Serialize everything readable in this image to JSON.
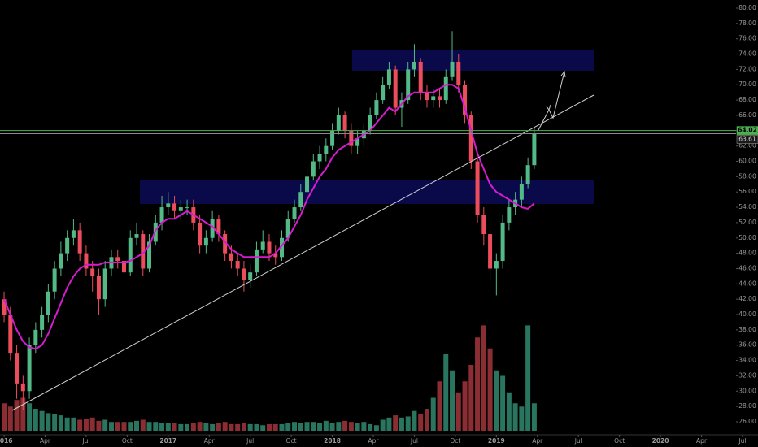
{
  "chart_data": {
    "type": "candlestick",
    "x": [
      0,
      2,
      4,
      6,
      8,
      10,
      12,
      14,
      16,
      18,
      20,
      22,
      24,
      26,
      28,
      30,
      32,
      34,
      36,
      38,
      40,
      42,
      44,
      46,
      48,
      50,
      52,
      54,
      56,
      58,
      60,
      62,
      64,
      66,
      68,
      70,
      72,
      74,
      76,
      78,
      80,
      82,
      84,
      86,
      88,
      90,
      92,
      94,
      96,
      98,
      100,
      102,
      104,
      106,
      108,
      110,
      112,
      114,
      116,
      118,
      120,
      122,
      124,
      126,
      128,
      130,
      132,
      134,
      136,
      138,
      140,
      142,
      144,
      146,
      148,
      150,
      152,
      154,
      156,
      158,
      160,
      162,
      164,
      166,
      168
    ],
    "open": [
      42,
      40,
      35,
      31,
      30,
      36,
      38,
      40,
      43,
      46,
      48,
      50,
      51,
      48,
      46,
      45,
      42,
      46,
      47.5,
      47,
      45.5,
      50,
      50.5,
      46,
      49.5,
      52,
      54,
      54.5,
      53.5,
      54,
      54,
      52,
      49,
      50,
      52.5,
      50.5,
      48,
      47,
      46,
      44.5,
      45.5,
      48.5,
      49.5,
      48,
      47.5,
      50,
      52.5,
      54,
      56,
      58,
      60,
      61,
      62,
      64,
      66,
      64,
      62,
      63,
      64,
      66,
      68,
      70,
      72,
      67,
      68,
      72,
      73,
      69,
      68,
      68.5,
      68,
      71,
      73,
      70,
      66,
      60,
      53,
      50.5,
      46,
      47,
      52,
      54,
      55,
      57,
      59.5
    ],
    "high": [
      43,
      41,
      36,
      32,
      37,
      39,
      41,
      44,
      47,
      49.5,
      51,
      52.5,
      52,
      49,
      47,
      46,
      47,
      48.5,
      48.5,
      48,
      51,
      52,
      51,
      50.5,
      53,
      55.5,
      56,
      55.5,
      55,
      55,
      55,
      53,
      51,
      53.5,
      53,
      51,
      49,
      48,
      47,
      46.5,
      49.5,
      51,
      50.5,
      49,
      51,
      53.5,
      55,
      57,
      59,
      61,
      62,
      63,
      65,
      67,
      66.5,
      65,
      64,
      65,
      67,
      69,
      71,
      73,
      72.5,
      69,
      73,
      75.3,
      73.5,
      70,
      69.5,
      69.5,
      72,
      77,
      74,
      70.5,
      66.5,
      60.5,
      54,
      51,
      48,
      53,
      55,
      56,
      58,
      60.5,
      64.5
    ],
    "low": [
      39,
      34,
      29,
      27.5,
      29,
      35,
      37,
      39,
      42,
      45,
      47,
      49,
      47,
      45,
      43,
      40,
      41,
      45,
      46,
      44.5,
      45,
      49,
      45,
      45.5,
      49,
      51,
      53,
      52.5,
      52.5,
      53,
      51,
      48,
      48,
      49.5,
      49.5,
      47,
      46,
      45,
      43,
      43.5,
      45,
      48,
      47,
      46.5,
      47,
      49.5,
      52,
      53.5,
      55.5,
      57.5,
      59,
      60,
      61.5,
      63.5,
      63,
      61,
      61,
      62,
      63.5,
      65.5,
      67.5,
      69.5,
      66,
      64.5,
      67.5,
      71,
      68,
      67,
      67,
      67,
      67.5,
      70.5,
      69,
      65,
      59,
      52,
      49,
      44.5,
      42.5,
      46,
      51,
      53,
      54,
      56.5,
      59
    ],
    "close": [
      40,
      35,
      31,
      30,
      36,
      38,
      40,
      43,
      46,
      48,
      50,
      51,
      48,
      46,
      45,
      42,
      46,
      47.5,
      47,
      45.5,
      50,
      50.5,
      46,
      49.5,
      52,
      54,
      54.5,
      53.5,
      54,
      54,
      52,
      49,
      50,
      52.5,
      50.5,
      48,
      47,
      46,
      44.5,
      45.5,
      48.5,
      49.5,
      48,
      47.5,
      50,
      52.5,
      54,
      56,
      58,
      60,
      61,
      62,
      64,
      66,
      64,
      62,
      63,
      64,
      66,
      68,
      70,
      72,
      67,
      68,
      72,
      73,
      69,
      68,
      68.5,
      68,
      71,
      73,
      70,
      66,
      60,
      53,
      50.5,
      46,
      47,
      52,
      54,
      55,
      57,
      59.5,
      63.61
    ],
    "volume": [
      25,
      22,
      28,
      30,
      25,
      20,
      18,
      16,
      15,
      14,
      12,
      12,
      10,
      11,
      12,
      9,
      10,
      8,
      8,
      8,
      8,
      9,
      10,
      8,
      8,
      7,
      7,
      7,
      6,
      6,
      7,
      8,
      7,
      6,
      7,
      8,
      6,
      6,
      7,
      6,
      6,
      5,
      6,
      6,
      6,
      7,
      8,
      7,
      8,
      8,
      7,
      9,
      7,
      8,
      9,
      8,
      7,
      8,
      6,
      5,
      10,
      12,
      14,
      12,
      13,
      18,
      15,
      20,
      30,
      45,
      70,
      55,
      35,
      45,
      60,
      85,
      96,
      75,
      55,
      50,
      35,
      25,
      22,
      96,
      25
    ],
    "moving_average": {
      "color": "#d81bd0",
      "values": [
        42,
        40,
        38,
        36.5,
        35.7,
        35.5,
        36,
        37.5,
        39.5,
        41.5,
        43.5,
        45,
        46,
        46.5,
        46.5,
        46.5,
        46.8,
        46.8,
        46.8,
        46.8,
        47,
        47.5,
        48,
        49,
        51,
        52,
        52.5,
        52.5,
        53,
        53.5,
        53,
        52.5,
        52,
        51.5,
        50.5,
        49.5,
        48.5,
        48,
        47.5,
        47.5,
        47.5,
        47.5,
        47.5,
        48,
        49,
        50,
        51.5,
        53,
        55,
        56.5,
        58,
        59,
        60.5,
        61.5,
        62,
        62.5,
        63,
        63.5,
        64,
        65,
        66,
        67,
        66.5,
        67.5,
        68.5,
        69,
        69,
        69,
        69,
        69.5,
        70,
        70,
        69.5,
        67,
        64,
        61,
        59,
        57,
        56,
        55.5,
        55,
        54.5,
        54,
        53.8,
        54.5
      ]
    },
    "up_color": "#53b987",
    "down_color": "#eb4d5c",
    "volume_up_color": "#2a7560",
    "volume_down_color": "#8b2e33",
    "xlim": [
      -1.3,
      238.9
    ],
    "xticks": [
      {
        "value": 0,
        "label": "2016"
      },
      {
        "value": 13,
        "label": "Apr"
      },
      {
        "value": 26,
        "label": "Jul"
      },
      {
        "value": 39,
        "label": "Oct"
      },
      {
        "value": 52,
        "label": "2017"
      },
      {
        "value": 65,
        "label": "Apr"
      },
      {
        "value": 78,
        "label": "Jul"
      },
      {
        "value": 91,
        "label": "Oct"
      },
      {
        "value": 104,
        "label": "2018"
      },
      {
        "value": 117,
        "label": "Apr"
      },
      {
        "value": 130,
        "label": "Jul"
      },
      {
        "value": 143,
        "label": "Oct"
      },
      {
        "value": 156,
        "label": "2019"
      },
      {
        "value": 169,
        "label": "Apr"
      },
      {
        "value": 182,
        "label": "Jul"
      },
      {
        "value": 195,
        "label": "Oct"
      },
      {
        "value": 208,
        "label": "2020"
      },
      {
        "value": 221,
        "label": "Apr"
      },
      {
        "value": 234,
        "label": "Jul"
      }
    ],
    "ylim": [
      24.3,
      81.06
    ],
    "yticks": [
      {
        "value": 26,
        "label": "26.00"
      },
      {
        "value": 28,
        "label": "28.00"
      },
      {
        "value": 30,
        "label": "30.00"
      },
      {
        "value": 32,
        "label": "32.00"
      },
      {
        "value": 34,
        "label": "34.00"
      },
      {
        "value": 36,
        "label": "36.00"
      },
      {
        "value": 38,
        "label": "38.00"
      },
      {
        "value": 40,
        "label": "40.00"
      },
      {
        "value": 42,
        "label": "42.00"
      },
      {
        "value": 44,
        "label": "44.00"
      },
      {
        "value": 46,
        "label": "46.00"
      },
      {
        "value": 48,
        "label": "48.00"
      },
      {
        "value": 50,
        "label": "50.00"
      },
      {
        "value": 52,
        "label": "52.00"
      },
      {
        "value": 54,
        "label": "54.00"
      },
      {
        "value": 56,
        "label": "56.00"
      },
      {
        "value": 58,
        "label": "58.00"
      },
      {
        "value": 60,
        "label": "60.00"
      },
      {
        "value": 62,
        "label": "62.00"
      },
      {
        "value": 64,
        "label": "64.00"
      },
      {
        "value": 66,
        "label": "66.00"
      },
      {
        "value": 68,
        "label": "68.00"
      },
      {
        "value": 70,
        "label": "70.00"
      },
      {
        "value": 72,
        "label": "72.00"
      },
      {
        "value": 74,
        "label": "74.00"
      },
      {
        "value": 76,
        "label": "76.00"
      },
      {
        "value": 78,
        "label": "78.00"
      },
      {
        "value": 80,
        "label": "80.00"
      }
    ],
    "volume_ylim": [
      0,
      100
    ],
    "price_lines": [
      {
        "value": 64.02,
        "color": "#4caf50"
      },
      {
        "value": 63.61,
        "color": "#8a8a8a"
      }
    ]
  }
}
